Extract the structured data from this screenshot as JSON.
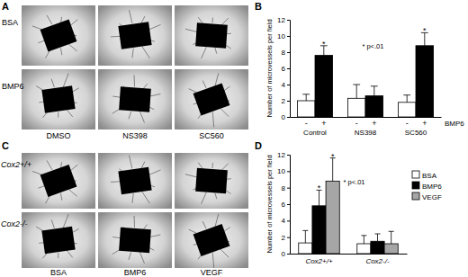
{
  "chart_data": [
    {
      "type": "bar",
      "ylabel": "Number of microvessels per field",
      "xlabel": "BMP6",
      "categories": [
        "Control",
        "NS398",
        "SC560"
      ],
      "series": [
        {
          "name": "-",
          "color": "#ffffff",
          "values": [
            2.0,
            2.3,
            1.8
          ],
          "errors": [
            0.8,
            1.7,
            0.9
          ]
        },
        {
          "name": "+",
          "color": "#000000",
          "values": [
            7.6,
            2.6,
            8.8
          ],
          "errors": [
            1.2,
            1.2,
            1.6
          ]
        }
      ],
      "ylim": [
        0,
        12
      ],
      "yticks": [
        0,
        2,
        4,
        6,
        8,
        10,
        12
      ],
      "annotations": [
        {
          "text": "* p<.01"
        },
        {
          "text": "*",
          "category": "Control",
          "series": "+"
        },
        {
          "text": "*",
          "category": "SC560",
          "series": "+"
        }
      ]
    },
    {
      "type": "bar",
      "ylabel": "Number of microvessels per field",
      "categories": [
        "Cox2+/+",
        "Cox2-/-"
      ],
      "series": [
        {
          "name": "BSA",
          "color": "#ffffff",
          "values": [
            1.3,
            1.2
          ],
          "errors": [
            1.5,
            1.0
          ]
        },
        {
          "name": "BMP6",
          "color": "#000000",
          "values": [
            5.8,
            1.5
          ],
          "errors": [
            1.9,
            0.9
          ]
        },
        {
          "name": "VEGF",
          "color": "#a6a6a6",
          "values": [
            8.8,
            1.2
          ],
          "errors": [
            2.8,
            1.5
          ]
        }
      ],
      "ylim": [
        0,
        12
      ],
      "yticks": [
        0,
        2,
        4,
        6,
        8,
        10,
        12
      ],
      "legend": "upper right",
      "annotations": [
        {
          "text": "* p<.01"
        },
        {
          "text": "*",
          "category": "Cox2+/+",
          "series": "BMP6"
        },
        {
          "text": "*",
          "category": "Cox2+/+",
          "series": "VEGF"
        }
      ]
    }
  ],
  "figure": {
    "panel_labels": [
      "A",
      "B",
      "C",
      "D"
    ],
    "panel_a": {
      "rows": [
        "BSA",
        "BMP6"
      ],
      "columns": [
        "DMSO",
        "NS398",
        "SC560"
      ]
    },
    "panel_c": {
      "rows": [
        "Cox2+/+",
        "Cox2-/-"
      ],
      "columns": [
        "BSA",
        "BMP6",
        "VEGF"
      ]
    }
  }
}
